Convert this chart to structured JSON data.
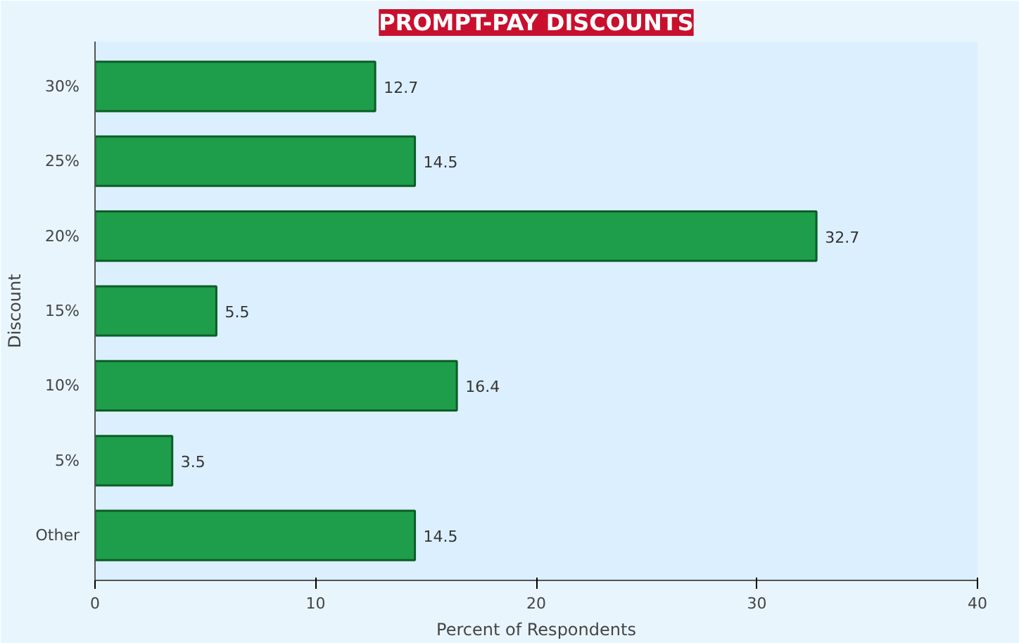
{
  "chart_data": {
    "type": "bar",
    "orientation": "horizontal",
    "title": "PROMPT-PAY DISCOUNTS",
    "xlabel": "Percent of Respondents",
    "ylabel": "Discount",
    "categories": [
      "30%",
      "25%",
      "20%",
      "15%",
      "10%",
      "5%",
      "Other"
    ],
    "values": [
      12.7,
      14.5,
      32.7,
      5.5,
      16.4,
      3.5,
      14.5
    ],
    "color": "#1e9e4a",
    "xlim": [
      0,
      40
    ],
    "xticks": [
      0,
      10,
      20,
      30,
      40
    ],
    "data_labels": true,
    "grid": false
  }
}
